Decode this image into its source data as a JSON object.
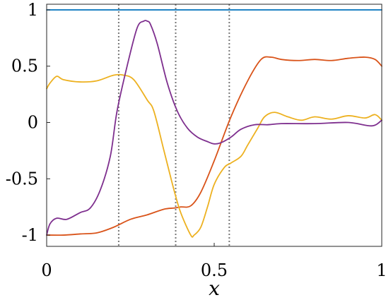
{
  "chart_data": {
    "type": "line",
    "title": "",
    "xlabel": "x",
    "ylabel": "",
    "xlim": [
      0,
      1
    ],
    "ylim": [
      -1.1,
      1.05
    ],
    "xticks": [
      {
        "value": 0,
        "label": "0"
      },
      {
        "value": 0.5,
        "label": "0.5"
      },
      {
        "value": 1,
        "label": "1"
      }
    ],
    "yticks": [
      {
        "value": 1,
        "label": "1"
      },
      {
        "value": 0.5,
        "label": "0.5"
      },
      {
        "value": 0,
        "label": "0"
      },
      {
        "value": -0.5,
        "label": "-0.5"
      },
      {
        "value": -1,
        "label": "-1"
      }
    ],
    "grid": false,
    "vertical_lines": [
      0.215,
      0.385,
      0.545
    ],
    "series": [
      {
        "color": "#0072BD",
        "x": [
          0,
          1
        ],
        "y": [
          1.0,
          1.0
        ]
      },
      {
        "color": "#D95319",
        "x": [
          0,
          0.05,
          0.1,
          0.15,
          0.2,
          0.25,
          0.3,
          0.35,
          0.38,
          0.4,
          0.43,
          0.46,
          0.5,
          0.55,
          0.6,
          0.64,
          0.67,
          0.7,
          0.75,
          0.8,
          0.85,
          0.9,
          0.95,
          0.98,
          1.0
        ],
        "y": [
          -1.0,
          -1.0,
          -0.99,
          -0.98,
          -0.93,
          -0.86,
          -0.82,
          -0.77,
          -0.76,
          -0.75,
          -0.74,
          -0.62,
          -0.34,
          0.05,
          0.37,
          0.56,
          0.58,
          0.56,
          0.55,
          0.56,
          0.55,
          0.57,
          0.58,
          0.56,
          0.5
        ]
      },
      {
        "color": "#EDB120",
        "x": [
          0,
          0.01,
          0.03,
          0.05,
          0.1,
          0.15,
          0.2,
          0.23,
          0.26,
          0.3,
          0.32,
          0.35,
          0.38,
          0.4,
          0.43,
          0.44,
          0.46,
          0.48,
          0.5,
          0.53,
          0.55,
          0.58,
          0.6,
          0.63,
          0.65,
          0.68,
          0.72,
          0.76,
          0.8,
          0.85,
          0.9,
          0.95,
          0.98,
          1.0
        ],
        "y": [
          0.3,
          0.35,
          0.41,
          0.38,
          0.36,
          0.37,
          0.42,
          0.42,
          0.38,
          0.2,
          0.1,
          -0.25,
          -0.6,
          -0.8,
          -1.0,
          -1.0,
          -0.93,
          -0.75,
          -0.55,
          -0.4,
          -0.36,
          -0.3,
          -0.2,
          -0.05,
          0.05,
          0.09,
          0.05,
          0.02,
          0.05,
          0.03,
          0.06,
          0.04,
          0.07,
          0.02
        ]
      },
      {
        "color": "#7E2F8E",
        "x": [
          0,
          0.01,
          0.03,
          0.06,
          0.1,
          0.13,
          0.16,
          0.19,
          0.21,
          0.24,
          0.27,
          0.29,
          0.3,
          0.31,
          0.33,
          0.36,
          0.39,
          0.42,
          0.45,
          0.48,
          0.5,
          0.52,
          0.55,
          0.58,
          0.62,
          0.66,
          0.7,
          0.8,
          0.9,
          0.97,
          1.0
        ],
        "y": [
          -1.0,
          -0.9,
          -0.85,
          -0.86,
          -0.8,
          -0.76,
          -0.6,
          -0.3,
          0.1,
          0.5,
          0.84,
          0.9,
          0.9,
          0.87,
          0.7,
          0.35,
          0.1,
          -0.05,
          -0.13,
          -0.17,
          -0.19,
          -0.18,
          -0.13,
          -0.06,
          -0.02,
          -0.02,
          -0.01,
          -0.01,
          0.0,
          -0.03,
          0.02
        ]
      }
    ]
  }
}
